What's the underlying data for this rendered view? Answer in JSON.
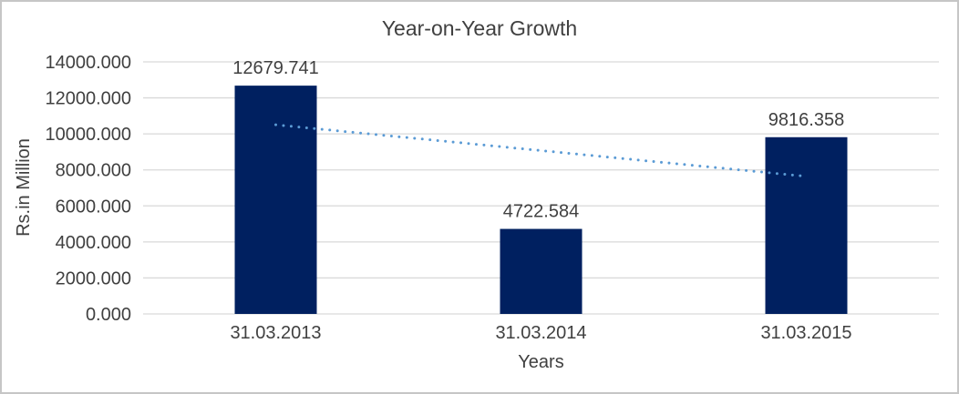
{
  "window": {
    "background": "#ffffff",
    "border_color": "#c6c6c6"
  },
  "chart_data": {
    "type": "bar",
    "title": "Year-on-Year Growth",
    "categories": [
      "31.03.2013",
      "31.03.2014",
      "31.03.2015"
    ],
    "values": [
      12679.741,
      4722.584,
      9816.358
    ],
    "data_labels": [
      "12679.741",
      "4722.584",
      "9816.358"
    ],
    "xlabel": "Years",
    "ylabel": "Rs.in Million",
    "ylim": [
      0,
      14000
    ],
    "y_tick_interval": 2000,
    "y_tick_labels": [
      "0.000",
      "2000.000",
      "4000.000",
      "6000.000",
      "8000.000",
      "10000.000",
      "12000.000",
      "14000.000"
    ],
    "grid": true,
    "legend_position": "none",
    "trendline": {
      "type": "linear",
      "dash": "dotted",
      "spans_categories": [
        0,
        2
      ]
    },
    "colors": {
      "bar": "#002060",
      "trendline": "#5b9bd5",
      "gridline": "#d9d9d9",
      "axis_line": "#d9d9d9",
      "text": "#404040"
    }
  }
}
